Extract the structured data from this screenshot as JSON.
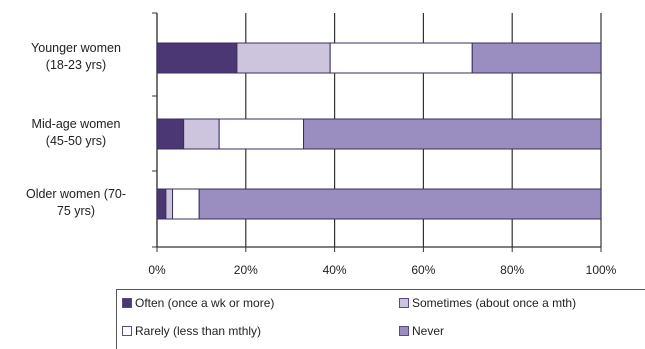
{
  "chart_data": {
    "type": "bar",
    "orientation": "horizontal",
    "stacked": "percent",
    "categories": [
      "Younger women (18-23 yrs)",
      "Mid-age women (45-50 yrs)",
      "Older women (70-75 yrs)"
    ],
    "category_lines": [
      [
        "Younger women",
        "(18-23 yrs)"
      ],
      [
        "Mid-age women",
        "(45-50 yrs)"
      ],
      [
        "Older women (70-",
        "75 yrs)"
      ]
    ],
    "series": [
      {
        "name": "Often (once a wk or more)",
        "color": "#4a3773",
        "values": [
          18,
          6,
          2
        ]
      },
      {
        "name": "Sometimes (about once a mth)",
        "color": "#cdc5dd",
        "values": [
          21,
          8,
          1.5
        ]
      },
      {
        "name": "Rarely (less than mthly)",
        "color": "#ffffff",
        "values": [
          32,
          19,
          6
        ]
      },
      {
        "name": "Never",
        "color": "#9a8dbf",
        "values": [
          29,
          67,
          90.5
        ]
      }
    ],
    "xlim": [
      0,
      100
    ],
    "xticks": [
      "0%",
      "20%",
      "40%",
      "60%",
      "80%",
      "100%"
    ],
    "grid": true,
    "legend_position": "bottom"
  }
}
